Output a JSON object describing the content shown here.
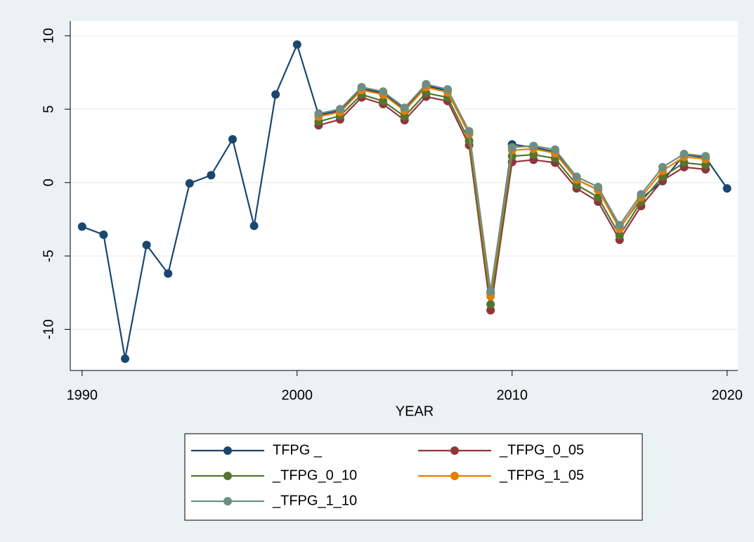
{
  "chart_data": {
    "type": "line",
    "x_label": "YEAR",
    "x": [
      1990,
      1991,
      1992,
      1993,
      1994,
      1995,
      1996,
      1997,
      1998,
      1999,
      2000,
      2001,
      2002,
      2003,
      2004,
      2005,
      2006,
      2007,
      2008,
      2009,
      2010,
      2011,
      2012,
      2013,
      2014,
      2015,
      2016,
      2017,
      2018,
      2019,
      2020
    ],
    "series": [
      {
        "name": "TFPG _",
        "color": "#1a476f",
        "values": [
          -3.0,
          -3.55,
          -12.0,
          -4.25,
          -6.2,
          -0.05,
          0.5,
          2.95,
          -2.95,
          6.0,
          9.4,
          4.6,
          4.9,
          6.4,
          6.1,
          5.0,
          6.6,
          6.25,
          3.4,
          -7.5,
          2.6,
          2.4,
          2.1,
          0.2,
          -0.5,
          -3.1,
          -1.1,
          0.1,
          1.9,
          1.7,
          -0.4
        ]
      },
      {
        "name": "_TFPG_0_05",
        "color": "#90353b",
        "values": [
          null,
          null,
          null,
          null,
          null,
          null,
          null,
          null,
          null,
          null,
          null,
          3.9,
          4.3,
          5.8,
          5.35,
          4.25,
          5.85,
          5.55,
          2.55,
          -8.7,
          1.4,
          1.55,
          1.35,
          -0.4,
          -1.3,
          -3.9,
          -1.6,
          0.15,
          1.05,
          0.9,
          null
        ]
      },
      {
        "name": "_TFPG_0_10",
        "color": "#55752f",
        "values": [
          null,
          null,
          null,
          null,
          null,
          null,
          null,
          null,
          null,
          null,
          null,
          4.15,
          4.55,
          6.0,
          5.55,
          4.5,
          6.1,
          5.8,
          2.85,
          -8.3,
          1.8,
          1.9,
          1.65,
          -0.15,
          -1.0,
          -3.6,
          -1.3,
          0.4,
          1.35,
          1.2,
          null
        ]
      },
      {
        "name": "_TFPG_1_05",
        "color": "#e37e00",
        "values": [
          null,
          null,
          null,
          null,
          null,
          null,
          null,
          null,
          null,
          null,
          null,
          4.5,
          4.8,
          6.3,
          6.0,
          4.9,
          6.5,
          6.15,
          3.3,
          -7.75,
          2.2,
          2.3,
          2.0,
          0.2,
          -0.5,
          -3.15,
          -1.0,
          0.8,
          1.75,
          1.6,
          null
        ]
      },
      {
        "name": "_TFPG_1_10",
        "color": "#6e8e84",
        "values": [
          null,
          null,
          null,
          null,
          null,
          null,
          null,
          null,
          null,
          null,
          null,
          4.7,
          5.0,
          6.5,
          6.2,
          5.1,
          6.7,
          6.35,
          3.5,
          -7.4,
          2.4,
          2.5,
          2.25,
          0.4,
          -0.3,
          -2.9,
          -0.8,
          1.05,
          1.95,
          1.8,
          null
        ]
      }
    ],
    "xlim": [
      1989.45,
      2020.5
    ],
    "xticks": [
      1990,
      2000,
      2010,
      2020
    ],
    "ylim": [
      -12.8,
      11
    ],
    "yticks": [
      -10,
      -5,
      0,
      5,
      10
    ],
    "grid": true,
    "legend_position": "bottom"
  }
}
